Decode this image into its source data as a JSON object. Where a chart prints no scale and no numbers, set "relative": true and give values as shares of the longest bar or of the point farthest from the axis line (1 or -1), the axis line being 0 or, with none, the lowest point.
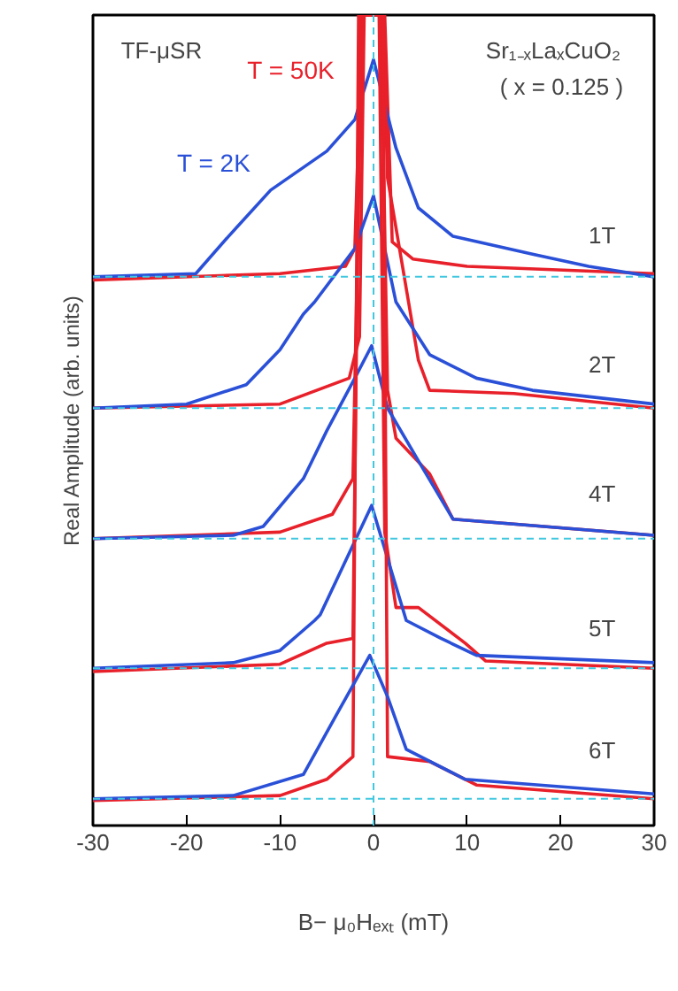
{
  "chart_data": {
    "type": "line",
    "relative": true,
    "xlabel": "B− μ₀Hₑₓₜ (mT)",
    "ylabel": "Real Amplitude (arb. units)",
    "xlim": [
      -30,
      30
    ],
    "xticks": [
      -30,
      -20,
      -10,
      0,
      10,
      20,
      30
    ],
    "grid": false,
    "annotations": [
      "TF-μSR",
      "Sr₁₋ₓLaₓCuO₂",
      "( x = 0.125 )",
      "1T",
      "2T",
      "4T",
      "5T",
      "6T"
    ],
    "ref_lines": [
      {
        "axis": "y",
        "value": 0.677,
        "color": "#40c8e0",
        "line_style": "dashed"
      },
      {
        "axis": "y",
        "value": 0.515,
        "color": "#40c8e0",
        "line_style": "dashed"
      },
      {
        "axis": "y",
        "value": 0.354,
        "color": "#40c8e0",
        "line_style": "dashed"
      },
      {
        "axis": "y",
        "value": 0.194,
        "color": "#40c8e0",
        "line_style": "dashed"
      },
      {
        "axis": "y",
        "value": 0.033,
        "color": "#40c8e0",
        "line_style": "dashed"
      },
      {
        "axis": "x",
        "value": 0,
        "color": "#40c8e0",
        "line_style": "dashed"
      }
    ],
    "series": [
      {
        "name": "T = 50K",
        "color": "#e8202a",
        "x": [
          -30,
          -10,
          -3,
          -2,
          -1.2,
          1.2,
          2,
          4.2,
          10,
          30
        ],
        "values": [
          0.673,
          0.681,
          0.69,
          0.712,
          1.0,
          1.0,
          0.72,
          0.699,
          0.69,
          0.681
        ]
      },
      {
        "name": "T = 2K",
        "color": "#2a50d8",
        "x": [
          -30,
          -19,
          -15.5,
          -11,
          -5,
          -2,
          0,
          2.4,
          4.8,
          8.5,
          17,
          23,
          30
        ],
        "values": [
          0.677,
          0.681,
          0.727,
          0.784,
          0.832,
          0.871,
          0.945,
          0.836,
          0.762,
          0.727,
          0.705,
          0.69,
          0.677
        ]
      },
      {
        "color": "#e8202a",
        "x": [
          -30,
          -10,
          -2.6,
          -1.5,
          -1.0,
          1.0,
          1.5,
          4.8,
          6,
          15,
          30
        ],
        "values": [
          0.515,
          0.52,
          0.552,
          0.603,
          1.0,
          1.0,
          0.799,
          0.574,
          0.537,
          0.533,
          0.515
        ]
      },
      {
        "color": "#2a50d8",
        "x": [
          -30,
          -20,
          -13.6,
          -10,
          -7.5,
          -6.3,
          -2,
          0,
          2.4,
          6,
          11,
          17,
          30
        ],
        "values": [
          0.515,
          0.52,
          0.544,
          0.587,
          0.631,
          0.646,
          0.712,
          0.777,
          0.646,
          0.581,
          0.552,
          0.537,
          0.52
        ]
      },
      {
        "color": "#e8202a",
        "x": [
          -30,
          -10,
          -4.4,
          -2.2,
          -1.2,
          0.8,
          1.5,
          2.4,
          6,
          8.5,
          30
        ],
        "values": [
          0.354,
          0.362,
          0.384,
          0.428,
          1.0,
          1.0,
          0.537,
          0.478,
          0.434,
          0.378,
          0.358
        ]
      },
      {
        "color": "#2a50d8",
        "x": [
          -30,
          -15,
          -11.8,
          -7.5,
          -5,
          -2,
          -0.2,
          1.5,
          4.8,
          8.5,
          30
        ],
        "values": [
          0.354,
          0.358,
          0.369,
          0.428,
          0.487,
          0.552,
          0.592,
          0.515,
          0.45,
          0.378,
          0.358
        ]
      },
      {
        "color": "#e8202a",
        "x": [
          -30,
          -10,
          -5,
          -2.2,
          -1.4,
          0.6,
          1.2,
          2.4,
          4.8,
          9.8,
          12,
          30
        ],
        "values": [
          0.19,
          0.199,
          0.225,
          0.231,
          1.0,
          1.0,
          0.362,
          0.269,
          0.269,
          0.225,
          0.203,
          0.194
        ]
      },
      {
        "color": "#2a50d8",
        "x": [
          -30,
          -15,
          -10,
          -6.3,
          -5.7,
          -0.2,
          3.5,
          7.2,
          11,
          30
        ],
        "values": [
          0.194,
          0.201,
          0.216,
          0.253,
          0.26,
          0.395,
          0.253,
          0.231,
          0.21,
          0.201
        ]
      },
      {
        "color": "#e8202a",
        "x": [
          -30,
          -10,
          -5,
          -2.2,
          -1.6,
          1.0,
          1.5,
          6,
          11,
          30
        ],
        "values": [
          0.031,
          0.037,
          0.057,
          0.085,
          1.0,
          1.0,
          0.085,
          0.079,
          0.05,
          0.033
        ]
      },
      {
        "color": "#2a50d8",
        "x": [
          -30,
          -15,
          -7.5,
          -3.9,
          -0.4,
          1.5,
          3.5,
          9.8,
          30
        ],
        "values": [
          0.033,
          0.037,
          0.063,
          0.138,
          0.21,
          0.159,
          0.094,
          0.057,
          0.039
        ]
      }
    ]
  }
}
